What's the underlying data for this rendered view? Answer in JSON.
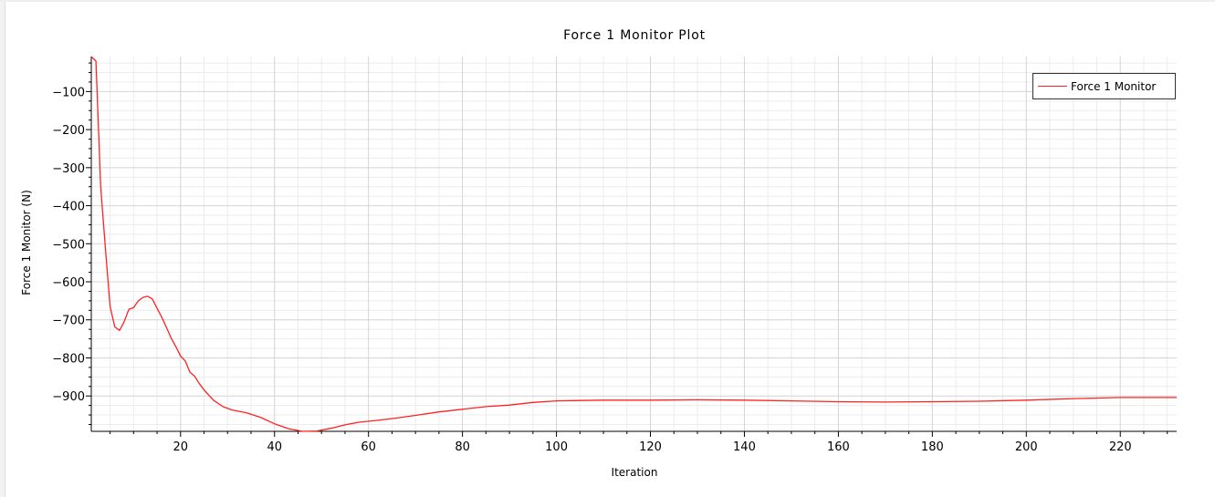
{
  "chart_data": {
    "type": "line",
    "title": "Force 1 Monitor Plot",
    "xlabel": "Iteration",
    "ylabel": "Force 1 Monitor (N)",
    "xlim": [
      1,
      232
    ],
    "ylim": [
      -993,
      -8
    ],
    "x_ticks": [
      20,
      40,
      60,
      80,
      100,
      120,
      140,
      160,
      180,
      200,
      220
    ],
    "y_ticks": [
      -100,
      -200,
      -300,
      -400,
      -500,
      -600,
      -700,
      -800,
      -900
    ],
    "grid": true,
    "legend": "top-right",
    "series": [
      {
        "name": "Force 1 Monitor",
        "color": "#ff2222",
        "x": [
          1,
          2,
          3,
          4,
          5,
          6,
          7,
          8,
          9,
          10,
          11,
          12,
          13,
          14,
          15,
          16,
          17,
          18,
          19,
          20,
          21,
          22,
          23,
          24,
          25,
          27,
          29,
          31,
          34,
          37,
          40,
          43,
          46,
          49,
          52,
          55,
          58,
          62,
          66,
          70,
          75,
          80,
          85,
          90,
          95,
          100,
          110,
          120,
          130,
          140,
          150,
          160,
          170,
          180,
          190,
          200,
          210,
          220,
          232
        ],
        "y": [
          -8,
          -20,
          -350,
          -510,
          -665,
          -718,
          -728,
          -705,
          -672,
          -668,
          -650,
          -641,
          -638,
          -645,
          -670,
          -693,
          -720,
          -748,
          -770,
          -795,
          -808,
          -838,
          -848,
          -868,
          -884,
          -911,
          -928,
          -937,
          -944,
          -956,
          -973,
          -986,
          -993,
          -992,
          -985,
          -976,
          -969,
          -964,
          -958,
          -951,
          -942,
          -935,
          -928,
          -924,
          -917,
          -913,
          -911,
          -911,
          -910,
          -911,
          -913,
          -915,
          -916,
          -915,
          -914,
          -911,
          -907,
          -904,
          -904
        ]
      }
    ]
  }
}
